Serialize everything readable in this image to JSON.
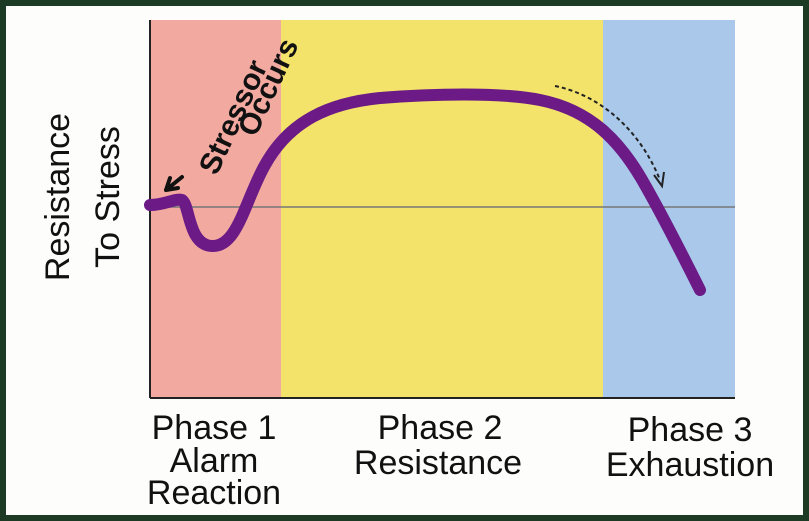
{
  "y_axis_label": {
    "lines": [
      "Resistance",
      "To Stress"
    ]
  },
  "annotation": {
    "lines": [
      "Stressor",
      "Occurs"
    ]
  },
  "phases": [
    {
      "lines": [
        "Phase 1",
        "Alarm",
        "Reaction"
      ]
    },
    {
      "lines": [
        "Phase 2",
        "Resistance"
      ]
    },
    {
      "lines": [
        "Phase 3",
        "Exhaustion"
      ]
    }
  ]
}
